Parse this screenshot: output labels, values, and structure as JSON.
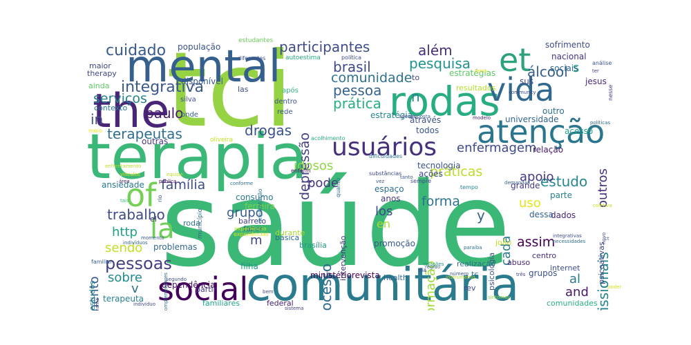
{
  "words": [
    {
      "text": "saúde",
      "color": "#3cb876"
    },
    {
      "text": "tci",
      "color": "#95d244"
    },
    {
      "text": "terapia",
      "color": "#3bb777"
    },
    {
      "text": "comunitária",
      "color": "#2b7b8e"
    },
    {
      "text": "mental",
      "color": "#355f8d"
    },
    {
      "text": "the",
      "color": "#482576"
    },
    {
      "text": "rodas",
      "color": "#27ad81"
    },
    {
      "text": "vida",
      "color": "#31688e"
    },
    {
      "text": "social",
      "color": "#44015b"
    },
    {
      "text": "atenção",
      "color": "#2b768e"
    },
    {
      "text": "usuários",
      "color": "#46307c"
    },
    {
      "text": "et",
      "color": "#2ba17c"
    },
    {
      "text": "of",
      "color": "#74d055"
    },
    {
      "text": "la",
      "color": "#6ece58"
    },
    {
      "text": "integrativa",
      "color": "#38588c"
    },
    {
      "text": "pessoas",
      "color": "#423f85"
    },
    {
      "text": "cuidado",
      "color": "#375b8d"
    },
    {
      "text": "participantes",
      "color": "#3e4c8a"
    },
    {
      "text": "brasil",
      "color": "#3f4889"
    },
    {
      "text": "pessoa",
      "color": "#33628d"
    },
    {
      "text": "comunidade",
      "color": "#2d718e"
    },
    {
      "text": "pesquisa",
      "color": "#20938c"
    },
    {
      "text": "prática",
      "color": "#27ad81"
    },
    {
      "text": "além",
      "color": "#472e7c"
    },
    {
      "text": "álcool",
      "color": "#355f8d"
    },
    {
      "text": "n",
      "color": "#24868e"
    },
    {
      "text": "s",
      "color": "#1f9e89"
    },
    {
      "text": "serviços",
      "color": "#26818e"
    },
    {
      "text": "in",
      "color": "#3c4f8a"
    },
    {
      "text": "paulo",
      "color": "#481d6f"
    },
    {
      "text": "terapeutas",
      "color": "#2e6e8e"
    },
    {
      "text": "drogas",
      "color": "#3a538b"
    },
    {
      "text": "enfermagem",
      "color": "#3e4a89"
    },
    {
      "text": "estudo",
      "color": "#24878e"
    },
    {
      "text": "família",
      "color": "#3d4e8a"
    },
    {
      "text": "práticas",
      "color": "#b8de29"
    },
    {
      "text": "forma",
      "color": "#2c738e"
    },
    {
      "text": "apoio",
      "color": "#453882"
    },
    {
      "text": "uso",
      "color": "#e3e418"
    },
    {
      "text": "outros",
      "color": "#472f7d"
    },
    {
      "text": "profissionais",
      "color": "#25838e"
    },
    {
      "text": "depressão",
      "color": "#423f85"
    },
    {
      "text": "tratamento",
      "color": "#365c8d"
    },
    {
      "text": "trabalho",
      "color": "#3e4989"
    },
    {
      "text": "http",
      "color": "#1fa088"
    },
    {
      "text": "sendo",
      "color": "#c2df23"
    },
    {
      "text": "sobre",
      "color": "#238a8d"
    },
    {
      "text": "grupo",
      "color": "#365c8d"
    },
    {
      "text": "processo",
      "color": "#2f6b8e"
    },
    {
      "text": "formação",
      "color": "#a0da39"
    },
    {
      "text": "los",
      "color": "#3e4989"
    },
    {
      "text": "en",
      "color": "#aadc32"
    },
    {
      "text": "idosos",
      "color": "#8fd744"
    },
    {
      "text": "pode",
      "color": "#463480"
    },
    {
      "text": "cada",
      "color": "#297b8e"
    },
    {
      "text": "assim",
      "color": "#440154"
    },
    {
      "text": "y",
      "color": "#33638d"
    },
    {
      "text": "al",
      "color": "#2a788e"
    },
    {
      "text": "and",
      "color": "#481769"
    },
    {
      "text": "m",
      "color": "#414487"
    },
    {
      "text": "v",
      "color": "#2e6f8e"
    },
    {
      "text": "terapeuta",
      "color": "#26828e"
    },
    {
      "text": "ansiedade",
      "color": "#29798e"
    },
    {
      "text": "problemas",
      "color": "#31678e"
    },
    {
      "text": "dependência",
      "color": "#440f60"
    },
    {
      "text": "ministériorevista",
      "color": "#440154"
    },
    {
      "text": "ferreira",
      "color": "#7ad151"
    },
    {
      "text": "consumo",
      "color": "#2a788e"
    },
    {
      "text": "universidade",
      "color": "#32648e"
    },
    {
      "text": "acesso",
      "color": "#1fa187"
    },
    {
      "text": "população",
      "color": "#3a538b"
    },
    {
      "text": "disponível",
      "color": "#38588c"
    },
    {
      "text": "sofrimento",
      "color": "#3e4c8a"
    },
    {
      "text": "nacional",
      "color": "#46307e"
    },
    {
      "text": "sociais",
      "color": "#31688e"
    },
    {
      "text": "sus",
      "color": "#3f4889"
    },
    {
      "text": "jesus",
      "color": "#482878"
    },
    {
      "text": "estratégia",
      "color": "#25848e"
    },
    {
      "text": "estratégias",
      "color": "#5cc863"
    },
    {
      "text": "resultados",
      "color": "#b5de2b"
    },
    {
      "text": "contexto",
      "color": "#2a788e"
    },
    {
      "text": "outras",
      "color": "#453781"
    },
    {
      "text": "através",
      "color": "#3b518b"
    },
    {
      "text": "todos",
      "color": "#39558c"
    },
    {
      "text": "outro",
      "color": "#2c718e"
    },
    {
      "text": "relação",
      "color": "#481a6c"
    },
    {
      "text": "espaço",
      "color": "#2d708e"
    },
    {
      "text": "ações",
      "color": "#3e4989"
    },
    {
      "text": "tecnologia",
      "color": "#3b518b"
    },
    {
      "text": "grande",
      "color": "#453781"
    },
    {
      "text": "parte",
      "color": "#26818e"
    },
    {
      "text": "dados",
      "color": "#482475"
    },
    {
      "text": "dessa",
      "color": "#34608d"
    },
    {
      "text": "anos",
      "color": "#453882"
    },
    {
      "text": "promoção",
      "color": "#39558c"
    },
    {
      "text": "pois",
      "color": "#2a768e"
    },
    {
      "text": "grupos",
      "color": "#3b528b"
    },
    {
      "text": "brasília",
      "color": "#1f998a"
    },
    {
      "text": "filha",
      "color": "#1e9c89"
    },
    {
      "text": "roda",
      "color": "#2c718e"
    },
    {
      "text": "básica",
      "color": "#2f6c8e"
    },
    {
      "text": "durante",
      "color": "#aadc32"
    },
    {
      "text": "federal",
      "color": "#482173"
    },
    {
      "text": "familiares",
      "color": "#20a486"
    },
    {
      "text": "partir",
      "color": "#453882"
    },
    {
      "text": "estudos",
      "color": "#25858e"
    },
    {
      "text": "health",
      "color": "#31678e"
    },
    {
      "text": "internet",
      "color": "#3d4d8a"
    },
    {
      "text": "abuso",
      "color": "#482576"
    },
    {
      "text": "centro",
      "color": "#472c7a"
    },
    {
      "text": "comunidades",
      "color": "#29af7f"
    },
    {
      "text": "rev",
      "color": "#3f4889"
    },
    {
      "text": "tc",
      "color": "#2b758e"
    },
    {
      "text": "intervenção",
      "color": "#46337f"
    },
    {
      "text": "psicologia",
      "color": "#3b528b"
    },
    {
      "text": "realização",
      "color": "#2e6e8e"
    },
    {
      "text": "joão",
      "color": "#c0df25"
    },
    {
      "text": "psicoativas",
      "color": "#414487"
    },
    {
      "text": "el",
      "color": "#472a7a"
    },
    {
      "text": "barreto",
      "color": "#433e85"
    },
    {
      "text": "fazer",
      "color": "#2d708e"
    },
    {
      "text": "maior",
      "color": "#414487"
    },
    {
      "text": "therapy",
      "color": "#3f4788"
    },
    {
      "text": "ainda",
      "color": "#5ec962"
    },
    {
      "text": "las",
      "color": "#3d4d8a"
    },
    {
      "text": "após",
      "color": "#31b57b"
    },
    {
      "text": "dentro",
      "color": "#3b518b"
    },
    {
      "text": "rede",
      "color": "#39568c"
    },
    {
      "text": "to",
      "color": "#3e4a89"
    },
    {
      "text": "onde",
      "color": "#355e8d"
    },
    {
      "text": "silva",
      "color": "#3d4e8a"
    },
    {
      "text": "meio",
      "color": "#e5e419"
    },
    {
      "text": "estudantes",
      "color": "#6ccd5a"
    },
    {
      "text": "autoestima",
      "color": "#25ab82"
    },
    {
      "text": "política",
      "color": "#3e4c8a"
    },
    {
      "text": "diferentes",
      "color": "#3b528b"
    },
    {
      "text": "análise",
      "color": "#39558c"
    },
    {
      "text": "nesse",
      "color": "#453781"
    },
    {
      "text": "município",
      "color": "#2f6c8e"
    },
    {
      "text": "rio",
      "color": "#3b528b"
    },
    {
      "text": "enferm",
      "color": "#471365"
    },
    {
      "text": "quanto",
      "color": "#2e6d8e"
    },
    {
      "text": "oliveira",
      "color": "#c8e020"
    },
    {
      "text": "dificuldades",
      "color": "#2d718e"
    },
    {
      "text": "implantação",
      "color": "#2a778e"
    },
    {
      "text": "acolhimento",
      "color": "#27ad81"
    },
    {
      "text": "modelo",
      "color": "#482475"
    },
    {
      "text": "apenas",
      "color": "#3e4a89"
    },
    {
      "text": "proposta",
      "color": "#38598c"
    },
    {
      "text": "community",
      "color": "#3e4a89"
    },
    {
      "text": "demandas",
      "color": "#365d8d"
    },
    {
      "text": "tempo",
      "color": "#27808e"
    },
    {
      "text": "sempre",
      "color": "#414487"
    },
    {
      "text": "região",
      "color": "#34618d"
    },
    {
      "text": "complementares",
      "color": "#2f6b8e"
    },
    {
      "text": "substâncias",
      "color": "#3e4989"
    },
    {
      "text": "experiência",
      "color": "#c2df23"
    },
    {
      "text": "experiências",
      "color": "#dde318"
    },
    {
      "text": "familiar",
      "color": "#355e8d"
    },
    {
      "text": "vez",
      "color": "#39568c"
    },
    {
      "text": "número",
      "color": "#3b528b"
    },
    {
      "text": "instrumento",
      "color": "#b2dd2d"
    },
    {
      "text": "enfrentamento",
      "color": "#bade28"
    },
    {
      "text": "equipe",
      "color": "#bddf26"
    },
    {
      "text": "pública",
      "color": "#440154"
    },
    {
      "text": "área",
      "color": "#482071"
    },
    {
      "text": "vínculos",
      "color": "#d8e219"
    },
    {
      "text": "tais",
      "color": "#3aba76"
    },
    {
      "text": "conforme",
      "color": "#2d708e"
    },
    {
      "text": "momento",
      "color": "#375a8c"
    },
    {
      "text": "indivíduos",
      "color": "#33638d"
    },
    {
      "text": "indivíduo",
      "color": "#3f4788"
    },
    {
      "text": "segundo",
      "color": "#3c4f8a"
    },
    {
      "text": "programa",
      "color": "#423f85"
    },
    {
      "text": "participação",
      "color": "#453882"
    },
    {
      "text": "bem",
      "color": "#3e4a89"
    },
    {
      "text": "integrativas",
      "color": "#3d4d8a"
    },
    {
      "text": "necessidades",
      "color": "#2d708e"
    },
    {
      "text": "novo",
      "color": "#3f4788"
    },
    {
      "text": "coletiva",
      "color": "#c5e021"
    },
    {
      "text": "paraíba",
      "color": "#2d718e"
    },
    {
      "text": "relações",
      "color": "#21908d"
    },
    {
      "text": "três",
      "color": "#433e85"
    },
    {
      "text": "poder",
      "color": "#d0e11c"
    },
    {
      "text": "sistema",
      "color": "#423f85"
    },
    {
      "text": "tanto",
      "color": "#39568c"
    },
    {
      "text": "ter",
      "color": "#414487"
    },
    {
      "text": "políticas",
      "color": "#31678e"
    },
    {
      "text": "sintomas",
      "color": "#8fd744"
    },
    {
      "text": "ct",
      "color": "#3b528b"
    },
    {
      "text": "dia",
      "color": "#3e4a89"
    },
    {
      "text": "tema",
      "color": "#e5e419"
    }
  ]
}
